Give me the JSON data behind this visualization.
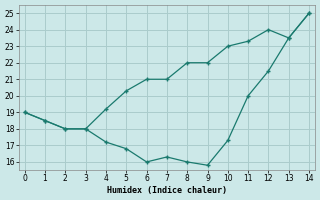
{
  "xlabel": "Humidex (Indice chaleur)",
  "bg_color": "#cce8e8",
  "grid_color": "#aacccc",
  "line_color": "#1a7a6e",
  "upper_x": [
    0,
    1,
    2,
    3,
    4,
    5,
    6,
    7,
    8,
    9,
    10,
    11,
    12,
    13,
    14
  ],
  "upper_y": [
    19.0,
    18.5,
    18.0,
    18.0,
    19.2,
    20.3,
    21.0,
    21.0,
    22.0,
    22.0,
    23.0,
    23.3,
    24.0,
    23.5,
    25.0
  ],
  "lower_x": [
    0,
    1,
    2,
    3,
    4,
    5,
    6,
    7,
    8,
    9,
    10,
    11,
    12,
    13,
    14
  ],
  "lower_y": [
    19.0,
    18.5,
    18.0,
    18.0,
    17.2,
    16.8,
    16.0,
    16.3,
    16.0,
    15.8,
    17.3,
    20.0,
    21.5,
    23.5,
    25.0
  ],
  "xlim": [
    -0.3,
    14.3
  ],
  "ylim": [
    15.5,
    25.5
  ],
  "yticks": [
    16,
    17,
    18,
    19,
    20,
    21,
    22,
    23,
    24,
    25
  ],
  "xticks": [
    0,
    1,
    2,
    3,
    4,
    5,
    6,
    7,
    8,
    9,
    10,
    11,
    12,
    13,
    14
  ]
}
